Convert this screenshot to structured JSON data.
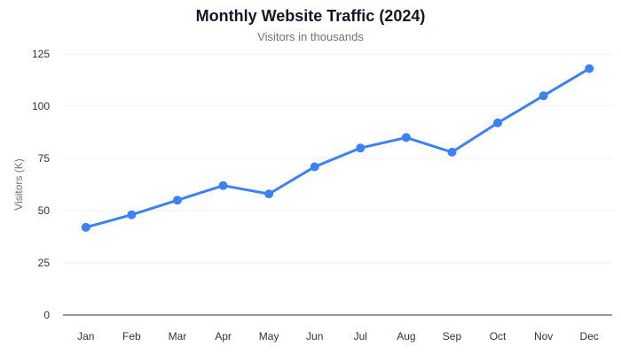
{
  "chart_data": {
    "type": "line",
    "title": "Monthly Website Traffic (2024)",
    "subtitle": "Visitors in thousands",
    "xlabel": "",
    "ylabel": "Visitors (K)",
    "categories": [
      "Jan",
      "Feb",
      "Mar",
      "Apr",
      "May",
      "Jun",
      "Jul",
      "Aug",
      "Sep",
      "Oct",
      "Nov",
      "Dec"
    ],
    "series": [
      {
        "values": [
          42,
          48,
          55,
          62,
          58,
          71,
          80,
          85,
          78,
          92,
          105,
          118
        ]
      }
    ],
    "ylim": [
      0,
      125
    ],
    "yticks": [
      0,
      25,
      50,
      75,
      100,
      125
    ],
    "grid": true,
    "legend": "none",
    "color": "#3b82f6"
  }
}
